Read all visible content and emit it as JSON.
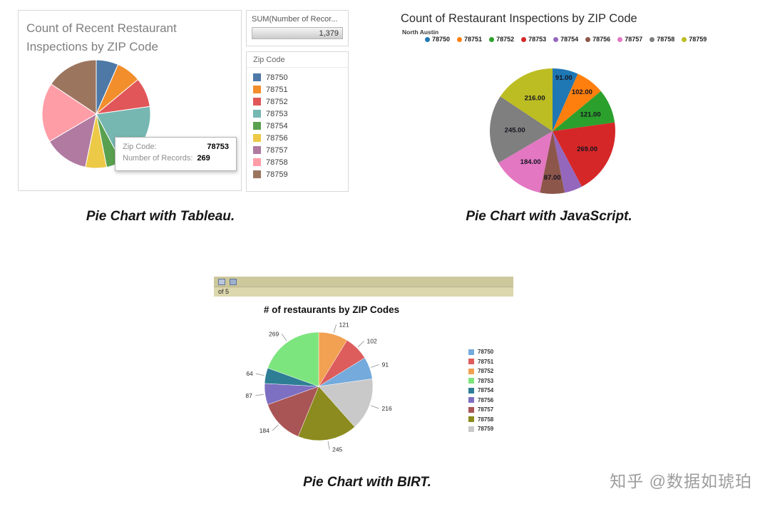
{
  "captions": {
    "tableau": "Pie Chart with Tableau.",
    "javascript": "Pie Chart with JavaScript.",
    "birt": "Pie Chart with BIRT."
  },
  "watermark": "知乎 @数据如琥珀",
  "tableau_panel": {
    "sum_field_label": "SUM(Number of Recor...",
    "sum_value": "1,379",
    "legend_title": "Zip Code",
    "tooltip": {
      "zip_label": "Zip Code:",
      "zip_value": "78753",
      "records_label": "Number of Records:",
      "records_value": "269"
    }
  },
  "birt_panel": {
    "toolbar_text": "of  5"
  },
  "chart_data": [
    {
      "id": "tableau-pie",
      "type": "pie",
      "tool": "Tableau",
      "title": "Count of Recent Restaurant Inspections by ZIP Code",
      "total": 1379,
      "legend_position": "right",
      "slices": [
        {
          "zip": "78750",
          "value": 91,
          "color": "#4e79a7"
        },
        {
          "zip": "78751",
          "value": 102,
          "color": "#f28e2b"
        },
        {
          "zip": "78752",
          "value": 121,
          "color": "#e15759"
        },
        {
          "zip": "78753",
          "value": 269,
          "color": "#76b7b2"
        },
        {
          "zip": "78754",
          "value": 64,
          "color": "#59a14f"
        },
        {
          "zip": "78756",
          "value": 87,
          "color": "#edc948"
        },
        {
          "zip": "78757",
          "value": 184,
          "color": "#b07aa1"
        },
        {
          "zip": "78758",
          "value": 245,
          "color": "#ff9da7"
        },
        {
          "zip": "78759",
          "value": 216,
          "color": "#9c755f"
        }
      ]
    },
    {
      "id": "javascript-pie",
      "type": "pie",
      "tool": "JavaScript",
      "title": "Count of Restaurant Inspections by ZIP Code",
      "subtitle": "North Austin",
      "total": 1379,
      "legend_position": "top",
      "slices": [
        {
          "zip": "78750",
          "value": 91,
          "color": "#1f77b4",
          "label": "91.00",
          "lr": 0.87
        },
        {
          "zip": "78751",
          "value": 102,
          "color": "#ff7f0e",
          "label": "102.00",
          "lr": 0.78
        },
        {
          "zip": "78752",
          "value": 121,
          "color": "#2ca02c",
          "label": "121.00",
          "lr": 0.66
        },
        {
          "zip": "78753",
          "value": 269,
          "color": "#d62728",
          "label": "269.00",
          "lr": 0.62
        },
        {
          "zip": "78754",
          "value": 64,
          "color": "#9467bd",
          "label": "",
          "lr": 0.7
        },
        {
          "zip": "78756",
          "value": 87,
          "color": "#8c564b",
          "label": "87.00",
          "lr": 0.74
        },
        {
          "zip": "78757",
          "value": 184,
          "color": "#e377c2",
          "label": "184.00",
          "lr": 0.6
        },
        {
          "zip": "78758",
          "value": 245,
          "color": "#7f7f7f",
          "label": "245.00",
          "lr": 0.6
        },
        {
          "zip": "78759",
          "value": 216,
          "color": "#bcbd22",
          "label": "216.00",
          "lr": 0.6
        }
      ]
    },
    {
      "id": "birt-pie",
      "type": "pie",
      "tool": "BIRT",
      "title": "# of restaurants by ZIP Codes",
      "total": 1379,
      "legend_position": "right",
      "legend": [
        {
          "zip": "78750",
          "color": "#74aadc"
        },
        {
          "zip": "78751",
          "color": "#dd5d5d"
        },
        {
          "zip": "78752",
          "color": "#f2a052"
        },
        {
          "zip": "78753",
          "color": "#7de57d"
        },
        {
          "zip": "78754",
          "color": "#2e7f95"
        },
        {
          "zip": "78756",
          "color": "#7d6fc2"
        },
        {
          "zip": "78757",
          "color": "#aa5555"
        },
        {
          "zip": "78758",
          "color": "#8b8b1f"
        },
        {
          "zip": "78759",
          "color": "#c9c9c9"
        }
      ],
      "slices": [
        {
          "zip": "78752",
          "value": 121,
          "color": "#f2a052",
          "label": "121"
        },
        {
          "zip": "78751",
          "value": 102,
          "color": "#dd5d5d",
          "label": "102"
        },
        {
          "zip": "78750",
          "value": 91,
          "color": "#74aadc",
          "label": "91"
        },
        {
          "zip": "78759",
          "value": 216,
          "color": "#c9c9c9",
          "label": "216"
        },
        {
          "zip": "78758",
          "value": 245,
          "color": "#8b8b1f",
          "label": "245"
        },
        {
          "zip": "78757",
          "value": 184,
          "color": "#aa5555",
          "label": "184"
        },
        {
          "zip": "78756",
          "value": 87,
          "color": "#7d6fc2",
          "label": "87"
        },
        {
          "zip": "78754",
          "value": 64,
          "color": "#2e7f95",
          "label": "64"
        },
        {
          "zip": "78753",
          "value": 269,
          "color": "#7de57d",
          "label": "269"
        }
      ]
    }
  ]
}
